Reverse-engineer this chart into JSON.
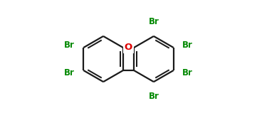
{
  "bg_color": "#ffffff",
  "bond_color": "#1a1a1a",
  "bond_width": 1.6,
  "dbo": 0.022,
  "o_color": "#dd0000",
  "br_color": "#008800",
  "br_fontsize": 8.5,
  "o_fontsize": 9.5,
  "figsize": [
    3.61,
    1.66
  ],
  "dpi": 100,
  "xlim": [
    0.0,
    1.0
  ],
  "ylim": [
    0.0,
    1.0
  ],
  "r_hex": 0.195,
  "clx": 0.285,
  "cly": 0.5,
  "crx": 0.715,
  "cry": 0.5
}
